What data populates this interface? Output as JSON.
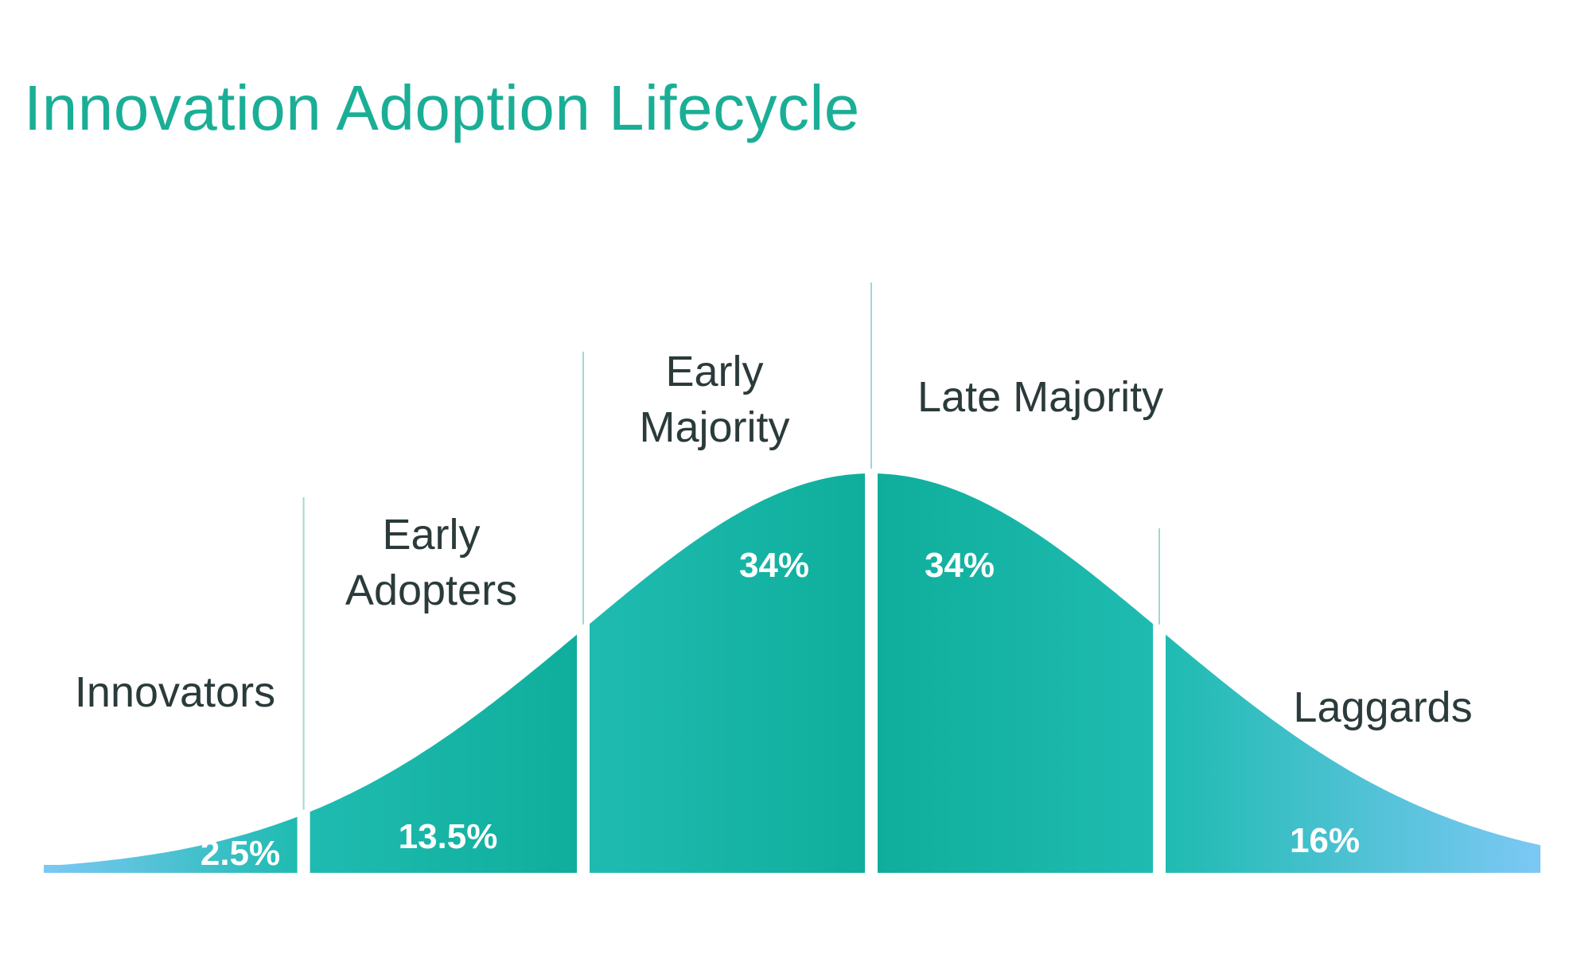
{
  "title": "Innovation Adoption Lifecycle",
  "colors": {
    "title": "#1aae96",
    "teal_dark": "#0fae9b",
    "teal_mid": "#1fbbb1",
    "tail_blue": "#7cc8f5",
    "divider": "#9fd8d2",
    "label_text": "#2b3a3a",
    "percent_text": "#ffffff"
  },
  "segments": [
    {
      "id": "innovators",
      "name_lines": [
        "Innovators"
      ],
      "percent": "2.5%",
      "share": 2.5
    },
    {
      "id": "early-adopters",
      "name_lines": [
        "Early",
        "Adopters"
      ],
      "percent": "13.5%",
      "share": 13.5
    },
    {
      "id": "early-majority",
      "name_lines": [
        "Early",
        "Majority"
      ],
      "percent": "34%",
      "share": 34
    },
    {
      "id": "late-majority",
      "name_lines": [
        "Late Majority"
      ],
      "percent": "34%",
      "share": 34
    },
    {
      "id": "laggards",
      "name_lines": [
        "Laggards"
      ],
      "percent": "16%",
      "share": 16
    }
  ]
}
